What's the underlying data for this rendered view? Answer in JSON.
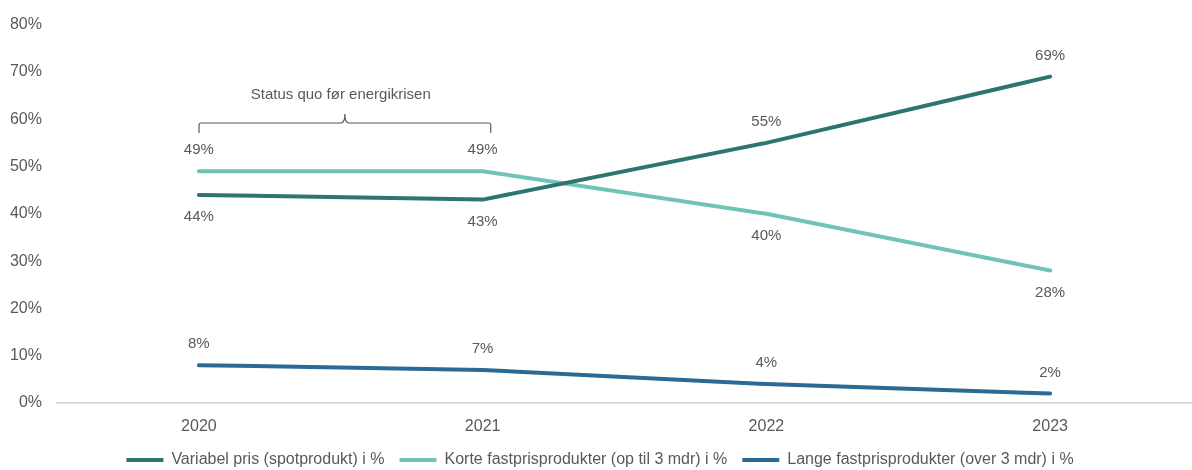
{
  "chart_data": {
    "type": "line",
    "categories": [
      "2020",
      "2021",
      "2022",
      "2023"
    ],
    "series": [
      {
        "name": "Variabel pris (spotprodukt) i %",
        "color": "#2e7572",
        "values": [
          44,
          43,
          55,
          69
        ],
        "value_labels": [
          "44%",
          "43%",
          "55%",
          "69%"
        ]
      },
      {
        "name": "Korte fastprisprodukter (op til 3 mdr) i %",
        "color": "#70c4b5",
        "values": [
          49,
          49,
          40,
          28
        ],
        "value_labels": [
          "49%",
          "49%",
          "40%",
          "28%"
        ]
      },
      {
        "name": "Lange fastprisprodukter (over 3 mdr) i %",
        "color": "#2a6a95",
        "values": [
          8,
          7,
          4,
          2
        ],
        "value_labels": [
          "8%",
          "7%",
          "4%",
          "2%"
        ]
      }
    ],
    "ylim": [
      0,
      80
    ],
    "yticks": [
      {
        "value": 0,
        "label": "0%"
      },
      {
        "value": 10,
        "label": "10%"
      },
      {
        "value": 20,
        "label": "20%"
      },
      {
        "value": 30,
        "label": "30%"
      },
      {
        "value": 40,
        "label": "40%"
      },
      {
        "value": 50,
        "label": "50%"
      },
      {
        "value": 60,
        "label": "60%"
      },
      {
        "value": 70,
        "label": "70%"
      },
      {
        "value": 80,
        "label": "80%"
      }
    ],
    "annotations": [
      "Status quo før energikrisen"
    ],
    "grid": false,
    "legend": "bottom",
    "marker": "none",
    "line_style": "solid"
  }
}
